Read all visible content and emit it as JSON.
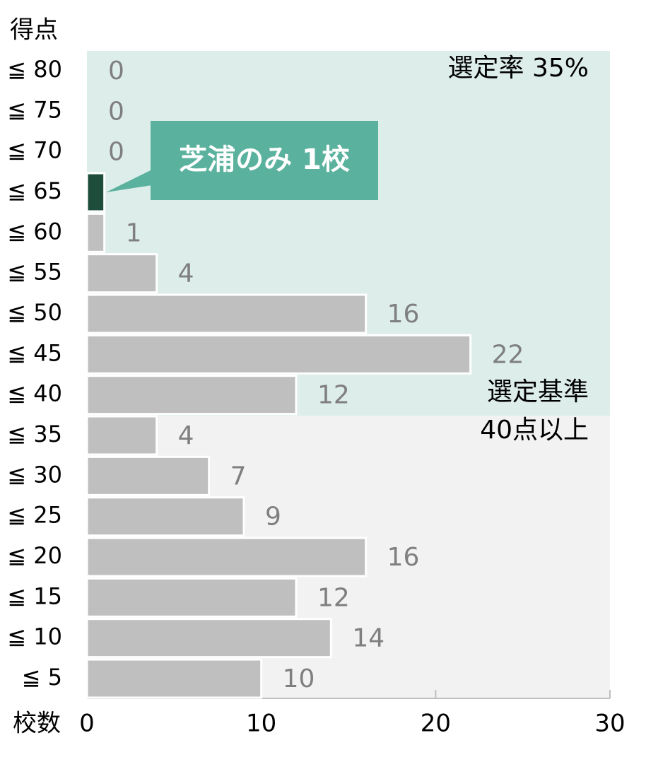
{
  "chart_data": {
    "type": "bar",
    "orientation": "horizontal",
    "categories": [
      "≦ 80",
      "≦ 75",
      "≦ 70",
      "≦ 65",
      "≦ 60",
      "≦ 55",
      "≦ 50",
      "≦ 45",
      "≦ 40",
      "≦ 35",
      "≦ 30",
      "≦ 25",
      "≦ 20",
      "≦ 15",
      "≦ 10",
      "≦ 5"
    ],
    "series": [
      {
        "color": "#bfbfbf",
        "data_labels": true,
        "values": [
          0,
          0,
          0,
          null,
          1,
          4,
          16,
          22,
          12,
          4,
          7,
          9,
          16,
          12,
          14,
          10
        ]
      },
      {
        "color": "#1e4d3b",
        "data_labels": false,
        "values": [
          null,
          null,
          null,
          1,
          null,
          null,
          null,
          null,
          null,
          null,
          null,
          null,
          null,
          null,
          null,
          null
        ]
      }
    ],
    "xlim": [
      0,
      30
    ],
    "xticks": [
      0,
      10,
      20,
      30
    ],
    "y_axis_label": "得点",
    "x_axis_label": "校数",
    "annotations": {
      "rate": "選定率 35%",
      "criteria_line1": "選定基準",
      "criteria_line2": "40点以上",
      "callout": "芝浦のみ 1校"
    }
  }
}
